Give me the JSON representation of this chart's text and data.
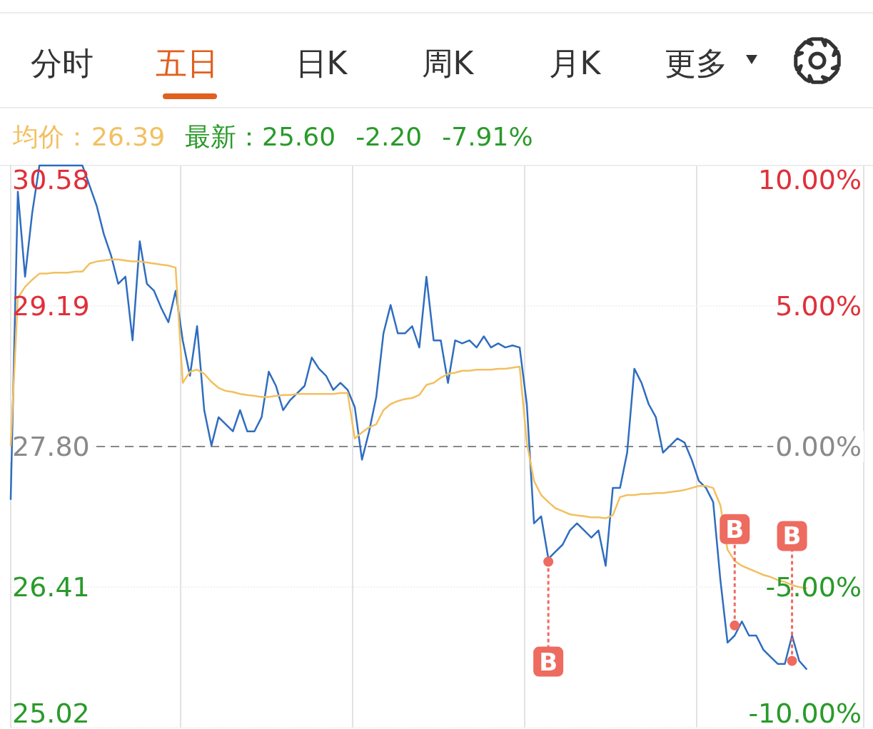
{
  "chart_data": {
    "type": "line",
    "annotations": [
      "分时",
      "五日",
      "日K",
      "周K",
      "月K",
      "更多",
      "26.39",
      "最新：25.60",
      "-2.20",
      "-7.91%"
    ],
    "categories": [
      null,
      null,
      null,
      null,
      null,
      null,
      null,
      null,
      null,
      null,
      null,
      null,
      null,
      null,
      null,
      null,
      null,
      null,
      null,
      null,
      null,
      null,
      null,
      null,
      null,
      null,
      null,
      null,
      null,
      null,
      null,
      null,
      null,
      null,
      null,
      null,
      null,
      null,
      null,
      null,
      null,
      null,
      null,
      null,
      null,
      null,
      null,
      null,
      null,
      null,
      null,
      null,
      null,
      null,
      null,
      null,
      null,
      null,
      null,
      null,
      null,
      null,
      null,
      null,
      null,
      null,
      null,
      null,
      null,
      null,
      null,
      null,
      null,
      null,
      null,
      null,
      null,
      null,
      null,
      null,
      null,
      null,
      null,
      null,
      null,
      null,
      null,
      null,
      null,
      null,
      null,
      null,
      null,
      null,
      null,
      null,
      null,
      null,
      null,
      null,
      null,
      null,
      null,
      null,
      null,
      null,
      null,
      null,
      null,
      null,
      null,
      null,
      null,
      null,
      null,
      null,
      null,
      null,
      null,
      null
    ],
    "ylim": [
      25.02,
      30.58
    ],
    "yticks": [
      {
        "value": 25.02,
        "label": "25.02"
      },
      {
        "value": 26.41,
        "label": "26.41"
      },
      {
        "value": 27.8,
        "label": "27.80"
      },
      {
        "value": 29.19,
        "label": "29.19"
      },
      {
        "value": 30.58,
        "label": "30.58"
      }
    ],
    "y2lim": [
      -10,
      10
    ],
    "y2ticks": [
      {
        "value": -10,
        "label": "-10.00%"
      },
      {
        "value": -5,
        "label": "-5.00%"
      },
      {
        "value": 0,
        "label": "0.00%"
      },
      {
        "value": 5,
        "label": "5.00%"
      },
      {
        "value": 10,
        "label": "10.00%"
      }
    ],
    "ref_lines": [
      {
        "axis": "y",
        "value": 27.8,
        "label": null,
        "color": "#888888",
        "line_style": "dashed"
      }
    ],
    "grid": true,
    "tick_labels": "y",
    "line_style": "solid",
    "series": [
      {
        "color": "#2f6dbf",
        "values": [
          27.28,
          30.32,
          29.48,
          30.11,
          30.58,
          30.58,
          30.58,
          30.58,
          30.58,
          30.58,
          30.58,
          30.38,
          30.18,
          29.9,
          29.69,
          29.41,
          29.48,
          28.85,
          29.83,
          29.41,
          29.34,
          29.17,
          29.03,
          29.34,
          28.85,
          28.5,
          28.99,
          28.16,
          27.81,
          28.09,
          28.02,
          27.95,
          28.16,
          27.95,
          27.95,
          28.09,
          28.54,
          28.4,
          28.16,
          28.26,
          28.33,
          28.4,
          28.68,
          28.57,
          28.5,
          28.36,
          28.43,
          28.36,
          28.19,
          27.67,
          27.95,
          28.29,
          28.92,
          29.2,
          28.92,
          28.92,
          28.99,
          28.78,
          29.48,
          28.85,
          28.85,
          28.43,
          28.85,
          28.82,
          28.85,
          28.78,
          28.89,
          28.78,
          28.82,
          28.78,
          28.8,
          28.78,
          28.22,
          27.04,
          27.11,
          26.69,
          26.76,
          26.83,
          26.97,
          27.04,
          26.97,
          26.9,
          26.97,
          26.62,
          27.39,
          27.39,
          27.74,
          28.57,
          28.43,
          28.22,
          28.09,
          27.74,
          27.81,
          27.88,
          27.84,
          27.67,
          27.46,
          27.39,
          27.25,
          26.48,
          25.86,
          25.93,
          26.07,
          25.93,
          25.93,
          25.79,
          25.72,
          25.65,
          25.65,
          25.93,
          25.68,
          25.6,
          null,
          null,
          null,
          null,
          null,
          null,
          null,
          null
        ]
      },
      {
        "name": "均价：",
        "color": "#f2c060",
        "values": [
          27.81,
          29.27,
          29.38,
          29.45,
          29.51,
          29.51,
          29.52,
          29.52,
          29.52,
          29.53,
          29.53,
          29.61,
          29.63,
          29.64,
          29.65,
          29.65,
          29.64,
          29.63,
          29.63,
          29.62,
          29.61,
          29.6,
          29.59,
          29.57,
          28.43,
          28.54,
          28.56,
          28.52,
          28.44,
          28.38,
          28.35,
          28.34,
          28.32,
          28.31,
          28.3,
          28.29,
          28.29,
          28.3,
          28.31,
          28.31,
          28.32,
          28.32,
          28.32,
          28.32,
          28.32,
          28.32,
          28.33,
          28.33,
          27.88,
          27.94,
          27.99,
          28.02,
          28.16,
          28.22,
          28.25,
          28.27,
          28.28,
          28.31,
          28.41,
          28.43,
          28.48,
          28.52,
          28.53,
          28.55,
          28.55,
          28.56,
          28.56,
          28.56,
          28.57,
          28.57,
          28.58,
          28.59,
          27.84,
          27.46,
          27.32,
          27.25,
          27.19,
          27.16,
          27.13,
          27.12,
          27.11,
          27.1,
          27.1,
          27.09,
          27.12,
          27.3,
          27.32,
          27.32,
          27.33,
          27.33,
          27.34,
          27.34,
          27.35,
          27.36,
          27.37,
          27.39,
          27.41,
          27.41,
          27.39,
          27.22,
          26.78,
          26.67,
          26.62,
          26.59,
          26.56,
          26.53,
          26.51,
          26.48,
          26.46,
          26.43,
          26.41,
          26.4,
          null,
          null,
          null,
          null,
          null,
          null,
          null,
          null
        ]
      },
      {
        "type": "scatter",
        "color": "#ee6b60",
        "values": [
          null,
          null,
          null,
          null,
          null,
          null,
          null,
          null,
          null,
          null,
          null,
          null,
          null,
          null,
          null,
          null,
          null,
          null,
          null,
          null,
          null,
          null,
          null,
          null,
          null,
          null,
          null,
          null,
          null,
          null,
          null,
          null,
          null,
          null,
          null,
          null,
          null,
          null,
          null,
          null,
          null,
          null,
          null,
          null,
          null,
          null,
          null,
          null,
          null,
          null,
          null,
          null,
          null,
          null,
          null,
          null,
          null,
          null,
          null,
          null,
          null,
          null,
          null,
          null,
          null,
          null,
          null,
          null,
          null,
          null,
          null,
          null,
          null,
          null,
          null,
          26.66,
          null,
          null,
          null,
          null,
          null,
          null,
          null,
          null,
          null,
          null,
          null,
          null,
          null,
          null,
          null,
          null,
          null,
          null,
          null,
          null,
          null,
          null,
          null,
          null,
          null,
          26.03,
          null,
          null,
          null,
          null,
          null,
          null,
          null,
          25.68,
          null,
          null,
          null,
          null,
          null,
          null,
          null,
          null,
          null,
          null
        ],
        "value_labels": [
          null,
          null,
          null,
          null,
          null,
          null,
          null,
          null,
          null,
          null,
          null,
          null,
          null,
          null,
          null,
          null,
          null,
          null,
          null,
          null,
          null,
          null,
          null,
          null,
          null,
          null,
          null,
          null,
          null,
          null,
          null,
          null,
          null,
          null,
          null,
          null,
          null,
          null,
          null,
          null,
          null,
          null,
          null,
          null,
          null,
          null,
          null,
          null,
          null,
          null,
          null,
          null,
          null,
          null,
          null,
          null,
          null,
          null,
          null,
          null,
          null,
          null,
          null,
          null,
          null,
          null,
          null,
          null,
          null,
          null,
          null,
          null,
          null,
          null,
          null,
          "B",
          null,
          null,
          null,
          null,
          null,
          null,
          null,
          null,
          null,
          null,
          null,
          null,
          null,
          null,
          null,
          null,
          null,
          null,
          null,
          null,
          null,
          null,
          null,
          null,
          null,
          "B",
          null,
          null,
          null,
          null,
          null,
          null,
          null,
          "B",
          null,
          null,
          null,
          null,
          null,
          null,
          null,
          null,
          null,
          null
        ]
      }
    ]
  }
}
